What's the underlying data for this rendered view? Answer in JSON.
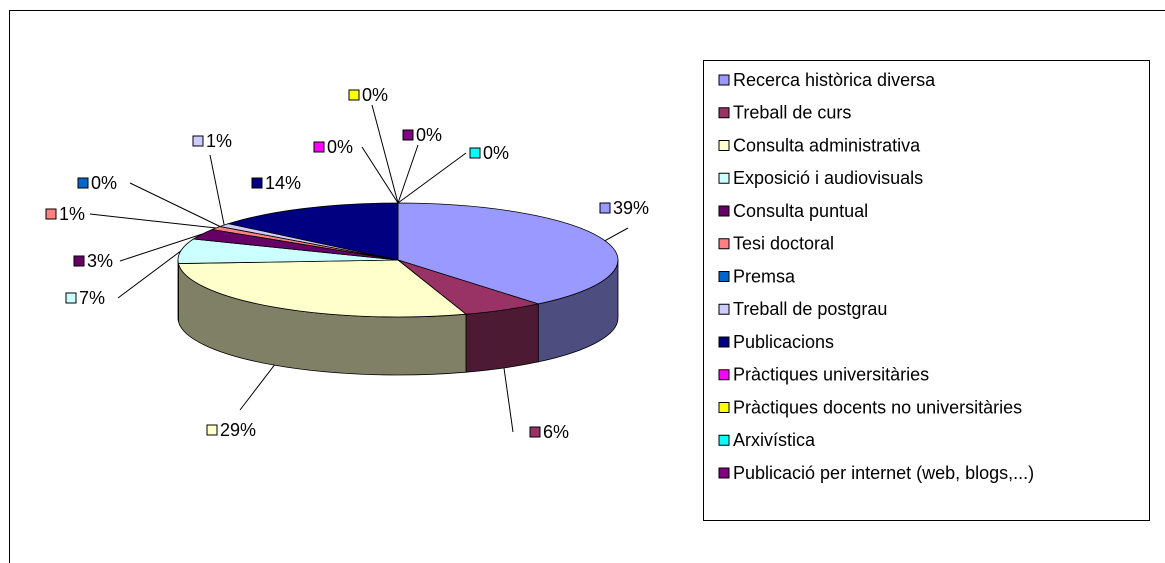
{
  "chart_data": {
    "type": "pie",
    "categories": [
      "Recerca històrica diversa",
      "Treball de curs",
      "Consulta administrativa",
      "Exposició i audiovisuals",
      "Consulta puntual",
      "Tesi doctoral",
      "Premsa",
      "Treball de postgrau",
      "Publicacions",
      "Pràctiques universitàries",
      "Pràctiques docents no universitàries",
      "Arxivística",
      "Publicació per internet (web, blogs,...)"
    ],
    "values": [
      39,
      6,
      29,
      7,
      3,
      1,
      0,
      1,
      14,
      0,
      0,
      0,
      0
    ],
    "value_labels": [
      "39%",
      "6%",
      "29%",
      "7%",
      "3%",
      "1%",
      "0%",
      "1%",
      "14%",
      "0%",
      "0%",
      "0%",
      "0%"
    ],
    "colors": [
      "#9999ff",
      "#993366",
      "#ffffcc",
      "#ccffff",
      "#660066",
      "#ff8080",
      "#0066cc",
      "#ccccff",
      "#000080",
      "#ff00ff",
      "#ffff00",
      "#00ffff",
      "#800080"
    ],
    "legend": "right"
  }
}
